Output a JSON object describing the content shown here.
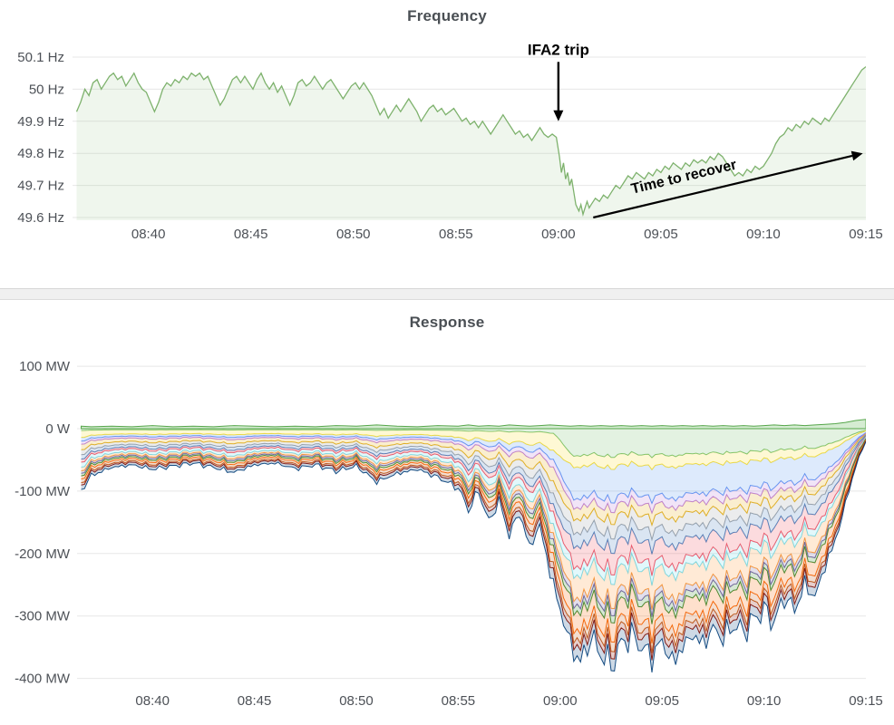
{
  "page": {
    "background": "#ffffff",
    "divider_color": "#f0f0f0"
  },
  "chart_data": [
    {
      "id": "frequency",
      "type": "line",
      "title": "Frequency",
      "unit": "Hz",
      "x_unit": "minutes_after_08:36",
      "x_domain": [
        0.3,
        39
      ],
      "ylim": [
        49.58,
        50.12
      ],
      "grid": true,
      "legend": "none",
      "grid_color": "#e7e7e7",
      "axis_color": "#4d5157",
      "line_color": "#7EB26D",
      "fill_color": "rgba(126,178,109,0.12)",
      "y_ticks": [
        {
          "label": "50.1 Hz",
          "value": 50.1
        },
        {
          "label": "50 Hz",
          "value": 50.0
        },
        {
          "label": "49.9 Hz",
          "value": 49.9
        },
        {
          "label": "49.8 Hz",
          "value": 49.8
        },
        {
          "label": "49.7 Hz",
          "value": 49.7
        },
        {
          "label": "49.6 Hz",
          "value": 49.6
        }
      ],
      "x_ticks": [
        {
          "label": "08:40",
          "t": 4
        },
        {
          "label": "08:45",
          "t": 9
        },
        {
          "label": "08:50",
          "t": 14
        },
        {
          "label": "08:55",
          "t": 19
        },
        {
          "label": "09:00",
          "t": 24
        },
        {
          "label": "09:05",
          "t": 29
        },
        {
          "label": "09:10",
          "t": 34
        },
        {
          "label": "09:15",
          "t": 39
        }
      ],
      "annotations": [
        {
          "kind": "down-arrow",
          "label": "IFA2 trip",
          "t": 24,
          "from_hz": 50.085,
          "to_hz": 49.9
        },
        {
          "kind": "trend-arrow",
          "label": "Time to recover",
          "from": {
            "t": 25.7,
            "hz": 49.6
          },
          "to": {
            "t": 38.85,
            "hz": 49.8
          }
        }
      ],
      "points": [
        [
          0.5,
          49.93
        ],
        [
          0.7,
          49.96
        ],
        [
          0.9,
          50.0
        ],
        [
          1.1,
          49.98
        ],
        [
          1.3,
          50.02
        ],
        [
          1.5,
          50.03
        ],
        [
          1.7,
          50.0
        ],
        [
          1.9,
          50.02
        ],
        [
          2.1,
          50.04
        ],
        [
          2.3,
          50.05
        ],
        [
          2.5,
          50.03
        ],
        [
          2.7,
          50.04
        ],
        [
          2.9,
          50.01
        ],
        [
          3.1,
          50.03
        ],
        [
          3.3,
          50.05
        ],
        [
          3.5,
          50.02
        ],
        [
          3.7,
          50.0
        ],
        [
          3.9,
          49.99
        ],
        [
          4.1,
          49.96
        ],
        [
          4.3,
          49.93
        ],
        [
          4.5,
          49.96
        ],
        [
          4.7,
          50.0
        ],
        [
          4.9,
          50.02
        ],
        [
          5.1,
          50.01
        ],
        [
          5.3,
          50.03
        ],
        [
          5.5,
          50.02
        ],
        [
          5.7,
          50.04
        ],
        [
          5.9,
          50.03
        ],
        [
          6.1,
          50.05
        ],
        [
          6.3,
          50.04
        ],
        [
          6.5,
          50.05
        ],
        [
          6.7,
          50.03
        ],
        [
          6.9,
          50.04
        ],
        [
          7.1,
          50.01
        ],
        [
          7.3,
          49.98
        ],
        [
          7.5,
          49.95
        ],
        [
          7.7,
          49.97
        ],
        [
          7.9,
          50.0
        ],
        [
          8.1,
          50.03
        ],
        [
          8.3,
          50.04
        ],
        [
          8.5,
          50.02
        ],
        [
          8.7,
          50.04
        ],
        [
          8.9,
          50.02
        ],
        [
          9.1,
          50.0
        ],
        [
          9.3,
          50.03
        ],
        [
          9.5,
          50.05
        ],
        [
          9.7,
          50.02
        ],
        [
          9.9,
          50.0
        ],
        [
          10.1,
          50.02
        ],
        [
          10.3,
          49.99
        ],
        [
          10.5,
          50.01
        ],
        [
          10.7,
          49.98
        ],
        [
          10.9,
          49.95
        ],
        [
          11.1,
          49.98
        ],
        [
          11.3,
          50.02
        ],
        [
          11.5,
          50.03
        ],
        [
          11.7,
          50.01
        ],
        [
          11.9,
          50.02
        ],
        [
          12.1,
          50.04
        ],
        [
          12.3,
          50.02
        ],
        [
          12.5,
          50.0
        ],
        [
          12.7,
          50.02
        ],
        [
          12.9,
          50.03
        ],
        [
          13.1,
          50.01
        ],
        [
          13.3,
          49.99
        ],
        [
          13.5,
          49.97
        ],
        [
          13.7,
          49.99
        ],
        [
          13.9,
          50.01
        ],
        [
          14.1,
          50.02
        ],
        [
          14.3,
          50.0
        ],
        [
          14.5,
          50.02
        ],
        [
          14.7,
          50.0
        ],
        [
          14.9,
          49.98
        ],
        [
          15.1,
          49.95
        ],
        [
          15.3,
          49.92
        ],
        [
          15.5,
          49.94
        ],
        [
          15.7,
          49.91
        ],
        [
          15.9,
          49.93
        ],
        [
          16.1,
          49.95
        ],
        [
          16.3,
          49.93
        ],
        [
          16.5,
          49.95
        ],
        [
          16.7,
          49.97
        ],
        [
          16.9,
          49.95
        ],
        [
          17.1,
          49.93
        ],
        [
          17.3,
          49.9
        ],
        [
          17.5,
          49.92
        ],
        [
          17.7,
          49.94
        ],
        [
          17.9,
          49.95
        ],
        [
          18.1,
          49.93
        ],
        [
          18.3,
          49.94
        ],
        [
          18.5,
          49.92
        ],
        [
          18.7,
          49.93
        ],
        [
          18.9,
          49.94
        ],
        [
          19.1,
          49.92
        ],
        [
          19.3,
          49.9
        ],
        [
          19.5,
          49.91
        ],
        [
          19.7,
          49.89
        ],
        [
          19.9,
          49.9
        ],
        [
          20.1,
          49.88
        ],
        [
          20.3,
          49.9
        ],
        [
          20.5,
          49.88
        ],
        [
          20.7,
          49.86
        ],
        [
          20.9,
          49.88
        ],
        [
          21.1,
          49.9
        ],
        [
          21.3,
          49.92
        ],
        [
          21.5,
          49.9
        ],
        [
          21.7,
          49.88
        ],
        [
          21.9,
          49.86
        ],
        [
          22.1,
          49.87
        ],
        [
          22.3,
          49.85
        ],
        [
          22.5,
          49.86
        ],
        [
          22.7,
          49.84
        ],
        [
          22.9,
          49.86
        ],
        [
          23.1,
          49.88
        ],
        [
          23.3,
          49.86
        ],
        [
          23.5,
          49.85
        ],
        [
          23.7,
          49.86
        ],
        [
          23.9,
          49.85
        ],
        [
          24.05,
          49.79
        ],
        [
          24.15,
          49.74
        ],
        [
          24.25,
          49.77
        ],
        [
          24.35,
          49.72
        ],
        [
          24.45,
          49.74
        ],
        [
          24.55,
          49.7
        ],
        [
          24.65,
          49.72
        ],
        [
          24.75,
          49.68
        ],
        [
          24.85,
          49.64
        ],
        [
          25.0,
          49.62
        ],
        [
          25.1,
          49.64
        ],
        [
          25.2,
          49.61
        ],
        [
          25.3,
          49.63
        ],
        [
          25.4,
          49.65
        ],
        [
          25.5,
          49.63
        ],
        [
          25.6,
          49.64
        ],
        [
          25.8,
          49.66
        ],
        [
          26.0,
          49.65
        ],
        [
          26.2,
          49.67
        ],
        [
          26.4,
          49.66
        ],
        [
          26.6,
          49.68
        ],
        [
          26.8,
          49.7
        ],
        [
          27.0,
          49.69
        ],
        [
          27.2,
          49.71
        ],
        [
          27.4,
          49.73
        ],
        [
          27.6,
          49.72
        ],
        [
          27.8,
          49.74
        ],
        [
          28.0,
          49.73
        ],
        [
          28.2,
          49.72
        ],
        [
          28.4,
          49.74
        ],
        [
          28.6,
          49.73
        ],
        [
          28.8,
          49.75
        ],
        [
          29.0,
          49.74
        ],
        [
          29.2,
          49.76
        ],
        [
          29.4,
          49.75
        ],
        [
          29.6,
          49.77
        ],
        [
          29.8,
          49.76
        ],
        [
          30.0,
          49.75
        ],
        [
          30.2,
          49.77
        ],
        [
          30.4,
          49.76
        ],
        [
          30.6,
          49.78
        ],
        [
          30.8,
          49.77
        ],
        [
          31.0,
          49.78
        ],
        [
          31.2,
          49.77
        ],
        [
          31.4,
          49.79
        ],
        [
          31.6,
          49.78
        ],
        [
          31.8,
          49.8
        ],
        [
          32.0,
          49.79
        ],
        [
          32.2,
          49.77
        ],
        [
          32.4,
          49.75
        ],
        [
          32.6,
          49.73
        ],
        [
          32.8,
          49.74
        ],
        [
          33.0,
          49.73
        ],
        [
          33.2,
          49.75
        ],
        [
          33.4,
          49.74
        ],
        [
          33.6,
          49.76
        ],
        [
          33.8,
          49.75
        ],
        [
          34.0,
          49.76
        ],
        [
          34.2,
          49.78
        ],
        [
          34.4,
          49.8
        ],
        [
          34.6,
          49.83
        ],
        [
          34.8,
          49.85
        ],
        [
          35.0,
          49.86
        ],
        [
          35.2,
          49.88
        ],
        [
          35.4,
          49.87
        ],
        [
          35.6,
          49.89
        ],
        [
          35.8,
          49.88
        ],
        [
          36.0,
          49.9
        ],
        [
          36.2,
          49.89
        ],
        [
          36.4,
          49.91
        ],
        [
          36.6,
          49.9
        ],
        [
          36.8,
          49.89
        ],
        [
          37.0,
          49.91
        ],
        [
          37.2,
          49.9
        ],
        [
          37.4,
          49.92
        ],
        [
          37.6,
          49.94
        ],
        [
          37.8,
          49.96
        ],
        [
          38.0,
          49.98
        ],
        [
          38.2,
          50.0
        ],
        [
          38.4,
          50.02
        ],
        [
          38.6,
          50.04
        ],
        [
          38.8,
          50.06
        ],
        [
          39.0,
          50.07
        ]
      ]
    },
    {
      "id": "response",
      "type": "area",
      "stacked": true,
      "title": "Response",
      "unit": "MW",
      "x_unit": "minutes_after_08:36",
      "x_domain": [
        0.3,
        39
      ],
      "ylim": [
        -410,
        120
      ],
      "grid": true,
      "legend": "none",
      "grid_color": "#e7e7e7",
      "axis_color": "#4d5157",
      "fill_opacity": 0.2,
      "positive_color": "#73BF69",
      "positive_stroke": "#56A64B",
      "y_ticks": [
        {
          "label": "100 MW",
          "value": 100
        },
        {
          "label": "0 W",
          "value": 0
        },
        {
          "label": "-100 MW",
          "value": -100
        },
        {
          "label": "-200 MW",
          "value": -200
        },
        {
          "label": "-300 MW",
          "value": -300
        },
        {
          "label": "-400 MW",
          "value": -400
        }
      ],
      "x_ticks": [
        {
          "label": "08:40",
          "t": 4
        },
        {
          "label": "08:45",
          "t": 9
        },
        {
          "label": "08:50",
          "t": 14
        },
        {
          "label": "08:55",
          "t": 19
        },
        {
          "label": "09:00",
          "t": 24
        },
        {
          "label": "09:05",
          "t": 29
        },
        {
          "label": "09:10",
          "t": 34
        },
        {
          "label": "09:15",
          "t": 39
        }
      ],
      "x": [
        0.5,
        1,
        2,
        3,
        4,
        5,
        6,
        7,
        8,
        9,
        10,
        11,
        12,
        13,
        14,
        15,
        16,
        17,
        18,
        19,
        19.5,
        20,
        20.5,
        21,
        21.5,
        22,
        22.5,
        23,
        23.5,
        24,
        24.5,
        25,
        25.5,
        26,
        26.5,
        27,
        27.5,
        28,
        28.5,
        29,
        29.5,
        30,
        30.5,
        31,
        31.5,
        32,
        32.5,
        33,
        33.5,
        34,
        34.5,
        35,
        35.5,
        36,
        36.5,
        37,
        37.5,
        38,
        38.5,
        39
      ],
      "total_mw": [
        -100,
        -75,
        -62,
        -58,
        -65,
        -60,
        -55,
        -62,
        -70,
        -58,
        -55,
        -64,
        -58,
        -68,
        -60,
        -85,
        -72,
        -65,
        -78,
        -95,
        -130,
        -100,
        -150,
        -115,
        -170,
        -135,
        -190,
        -155,
        -230,
        -290,
        -345,
        -375,
        -335,
        -360,
        -380,
        -345,
        -330,
        -350,
        -365,
        -340,
        -375,
        -350,
        -330,
        -345,
        -320,
        -335,
        -315,
        -325,
        -305,
        -290,
        -310,
        -270,
        -290,
        -250,
        -270,
        -220,
        -180,
        -120,
        -60,
        -20
      ],
      "positive_top_mw": [
        4,
        3,
        4,
        3,
        5,
        3,
        4,
        3,
        5,
        4,
        3,
        4,
        3,
        5,
        4,
        6,
        4,
        3,
        5,
        4,
        6,
        4,
        5,
        4,
        6,
        5,
        4,
        5,
        6,
        5,
        4,
        5,
        4,
        5,
        4,
        5,
        4,
        5,
        4,
        5,
        4,
        5,
        4,
        5,
        4,
        5,
        4,
        5,
        4,
        5,
        6,
        5,
        6,
        5,
        6,
        7,
        8,
        10,
        13,
        15
      ],
      "series": [
        {
          "name": "series-01",
          "color": "#73BF69",
          "share_pre": 0.03,
          "share_event": 0.12
        },
        {
          "name": "series-02",
          "color": "#FADE2A",
          "share_pre": 0.11,
          "share_event": 0.05
        },
        {
          "name": "series-03",
          "color": "#5794F2",
          "share_pre": 0.06,
          "share_event": 0.14
        },
        {
          "name": "series-04",
          "color": "#B877D9",
          "share_pre": 0.05,
          "share_event": 0.04
        },
        {
          "name": "series-05",
          "color": "#E5AC0E",
          "share_pre": 0.09,
          "share_event": 0.05
        },
        {
          "name": "series-06",
          "color": "#9AA0A6",
          "share_pre": 0.08,
          "share_event": 0.06
        },
        {
          "name": "series-07",
          "color": "#447EBC",
          "share_pre": 0.07,
          "share_event": 0.06
        },
        {
          "name": "series-08",
          "color": "#F2495C",
          "share_pre": 0.05,
          "share_event": 0.09
        },
        {
          "name": "series-09",
          "color": "#70DBED",
          "share_pre": 0.08,
          "share_event": 0.04
        },
        {
          "name": "series-10",
          "color": "#FF9830",
          "share_pre": 0.06,
          "share_event": 0.1
        },
        {
          "name": "series-11",
          "color": "#705DA0",
          "share_pre": 0.04,
          "share_event": 0.03
        },
        {
          "name": "series-12",
          "color": "#37872D",
          "share_pre": 0.04,
          "share_event": 0.03
        },
        {
          "name": "series-13",
          "color": "#FA6400",
          "share_pre": 0.05,
          "share_event": 0.08
        },
        {
          "name": "series-14",
          "color": "#C15C17",
          "share_pre": 0.06,
          "share_event": 0.04
        },
        {
          "name": "series-15",
          "color": "#890F02",
          "share_pre": 0.04,
          "share_event": 0.03
        },
        {
          "name": "series-16",
          "color": "#0A437C",
          "share_pre": 0.07,
          "share_event": 0.05
        }
      ]
    }
  ]
}
